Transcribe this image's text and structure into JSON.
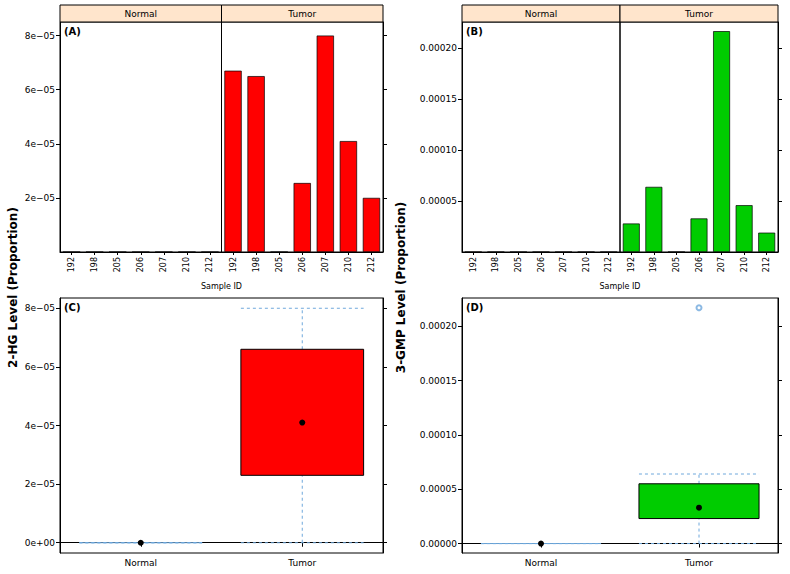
{
  "chart_data": [
    {
      "type": "bar",
      "title": "(A)",
      "ylabel": "2-HG Level (Proportion)",
      "xlabel": "Sample ID",
      "color": "#ff0000",
      "facets": [
        {
          "label": "Normal",
          "categories": [
            "192",
            "198",
            "205",
            "206",
            "207",
            "210",
            "212"
          ],
          "values": [
            0,
            0,
            0,
            0,
            0,
            0,
            0
          ]
        },
        {
          "label": "Tumor",
          "categories": [
            "192",
            "198",
            "205",
            "206",
            "207",
            "210",
            "212"
          ],
          "values": [
            6.7e-05,
            6.5e-05,
            0,
            2.55e-05,
            8e-05,
            4.1e-05,
            2e-05
          ]
        }
      ],
      "ylim": [
        0,
        8.5e-05
      ],
      "yticks": [
        {
          "value": 2e-05,
          "label": "2e−05"
        },
        {
          "value": 4e-05,
          "label": "4e−05"
        },
        {
          "value": 6e-05,
          "label": "6e−05"
        },
        {
          "value": 8e-05,
          "label": "8e−05"
        }
      ]
    },
    {
      "type": "bar",
      "title": "(B)",
      "ylabel": "3-GMP Level (Proportion)",
      "xlabel": "Sample ID",
      "color": "#00cc00",
      "facets": [
        {
          "label": "Normal",
          "categories": [
            "192",
            "198",
            "205",
            "206",
            "207",
            "210",
            "212"
          ],
          "values": [
            0,
            0,
            0,
            0,
            0,
            0,
            0
          ]
        },
        {
          "label": "Tumor",
          "categories": [
            "192",
            "198",
            "205",
            "206",
            "207",
            "210",
            "212"
          ],
          "values": [
            2.8e-05,
            6.4e-05,
            0,
            3.3e-05,
            0.000217,
            4.6e-05,
            1.9e-05
          ]
        }
      ],
      "ylim": [
        0,
        0.000226
      ],
      "yticks": [
        {
          "value": 5e-05,
          "label": "0.00005"
        },
        {
          "value": 0.0001,
          "label": "0.00010"
        },
        {
          "value": 0.00015,
          "label": "0.00015"
        },
        {
          "value": 0.0002,
          "label": "0.00020"
        }
      ]
    },
    {
      "type": "boxplot",
      "title": "(C)",
      "color": "#ff0000",
      "categories": [
        "Normal",
        "Tumor"
      ],
      "boxes": [
        [
          0,
          0,
          0,
          0,
          0
        ],
        [
          0,
          2.3e-05,
          4.1e-05,
          6.6e-05,
          8e-05
        ]
      ],
      "outliers": [
        [],
        []
      ],
      "ylim": [
        -3.5e-06,
        8.35e-05
      ],
      "yticks": [
        {
          "value": 0,
          "label": "0e+00"
        },
        {
          "value": 2e-05,
          "label": "2e−05"
        },
        {
          "value": 4e-05,
          "label": "4e−05"
        },
        {
          "value": 6e-05,
          "label": "6e−05"
        },
        {
          "value": 8e-05,
          "label": "8e−05"
        }
      ]
    },
    {
      "type": "boxplot",
      "title": "(D)",
      "color": "#00cc00",
      "categories": [
        "Normal",
        "Tumor"
      ],
      "boxes": [
        [
          0,
          0,
          0,
          0,
          0
        ],
        [
          0,
          2.3e-05,
          3.3e-05,
          5.5e-05,
          6.4e-05
        ]
      ],
      "outliers": [
        [],
        [
          0.000217
        ]
      ],
      "ylim": [
        -8.7e-06,
        0.000226
      ],
      "yticks": [
        {
          "value": 0,
          "label": "0.00000"
        },
        {
          "value": 5e-05,
          "label": "0.00005"
        },
        {
          "value": 0.0001,
          "label": "0.00010"
        },
        {
          "value": 0.00015,
          "label": "0.00015"
        },
        {
          "value": 0.0002,
          "label": "0.00020"
        }
      ]
    }
  ]
}
